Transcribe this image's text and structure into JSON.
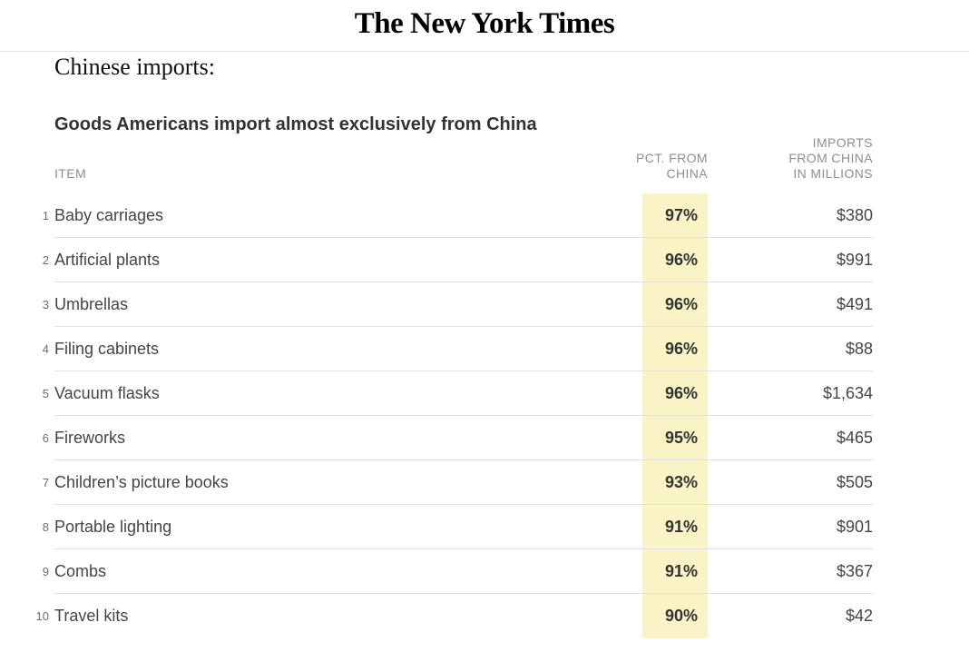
{
  "masthead": {
    "title": "The New York Times"
  },
  "article": {
    "headline": "Chinese imports:"
  },
  "table": {
    "title": "Goods Americans import almost exclusively from China",
    "columns": {
      "item": "ITEM",
      "pct_lines": [
        "PCT. FROM",
        "CHINA"
      ],
      "imports_lines": [
        "IMPORTS",
        "FROM CHINA",
        "IN MILLIONS"
      ]
    },
    "rows": [
      {
        "rank": "1",
        "item": "Baby carriages",
        "pct": "97%",
        "imports": "$380"
      },
      {
        "rank": "2",
        "item": "Artificial plants",
        "pct": "96%",
        "imports": "$991"
      },
      {
        "rank": "3",
        "item": "Umbrellas",
        "pct": "96%",
        "imports": "$491"
      },
      {
        "rank": "4",
        "item": "Filing cabinets",
        "pct": "96%",
        "imports": "$88"
      },
      {
        "rank": "5",
        "item": "Vacuum flasks",
        "pct": "96%",
        "imports": "$1,634"
      },
      {
        "rank": "6",
        "item": "Fireworks",
        "pct": "95%",
        "imports": "$465"
      },
      {
        "rank": "7",
        "item": "Children’s picture books",
        "pct": "93%",
        "imports": "$505"
      },
      {
        "rank": "8",
        "item": "Portable lighting",
        "pct": "91%",
        "imports": "$901"
      },
      {
        "rank": "9",
        "item": "Combs",
        "pct": "91%",
        "imports": "$367"
      },
      {
        "rank": "10",
        "item": "Travel kits",
        "pct": "90%",
        "imports": "$42"
      }
    ]
  },
  "colors": {
    "highlight": "#faf3c5",
    "divider": "#e2e2e2",
    "header_text": "#8e8e8e",
    "body_text": "#454545"
  },
  "chart_data": {
    "type": "table",
    "title": "Goods Americans import almost exclusively from China",
    "columns": [
      "ITEM",
      "PCT. FROM CHINA",
      "IMPORTS FROM CHINA IN MILLIONS"
    ],
    "rows": [
      {
        "rank": 1,
        "item": "Baby carriages",
        "pct_from_china": 97,
        "imports_millions": 380
      },
      {
        "rank": 2,
        "item": "Artificial plants",
        "pct_from_china": 96,
        "imports_millions": 991
      },
      {
        "rank": 3,
        "item": "Umbrellas",
        "pct_from_china": 96,
        "imports_millions": 491
      },
      {
        "rank": 4,
        "item": "Filing cabinets",
        "pct_from_china": 96,
        "imports_millions": 88
      },
      {
        "rank": 5,
        "item": "Vacuum flasks",
        "pct_from_china": 96,
        "imports_millions": 1634
      },
      {
        "rank": 6,
        "item": "Fireworks",
        "pct_from_china": 95,
        "imports_millions": 465
      },
      {
        "rank": 7,
        "item": "Children’s picture books",
        "pct_from_china": 93,
        "imports_millions": 505
      },
      {
        "rank": 8,
        "item": "Portable lighting",
        "pct_from_china": 91,
        "imports_millions": 901
      },
      {
        "rank": 9,
        "item": "Combs",
        "pct_from_china": 91,
        "imports_millions": 367
      },
      {
        "rank": 10,
        "item": "Travel kits",
        "pct_from_china": 90,
        "imports_millions": 42
      }
    ],
    "notes": "PCT. FROM CHINA column is highlighted pale yellow; imports values shown in millions of dollars"
  }
}
